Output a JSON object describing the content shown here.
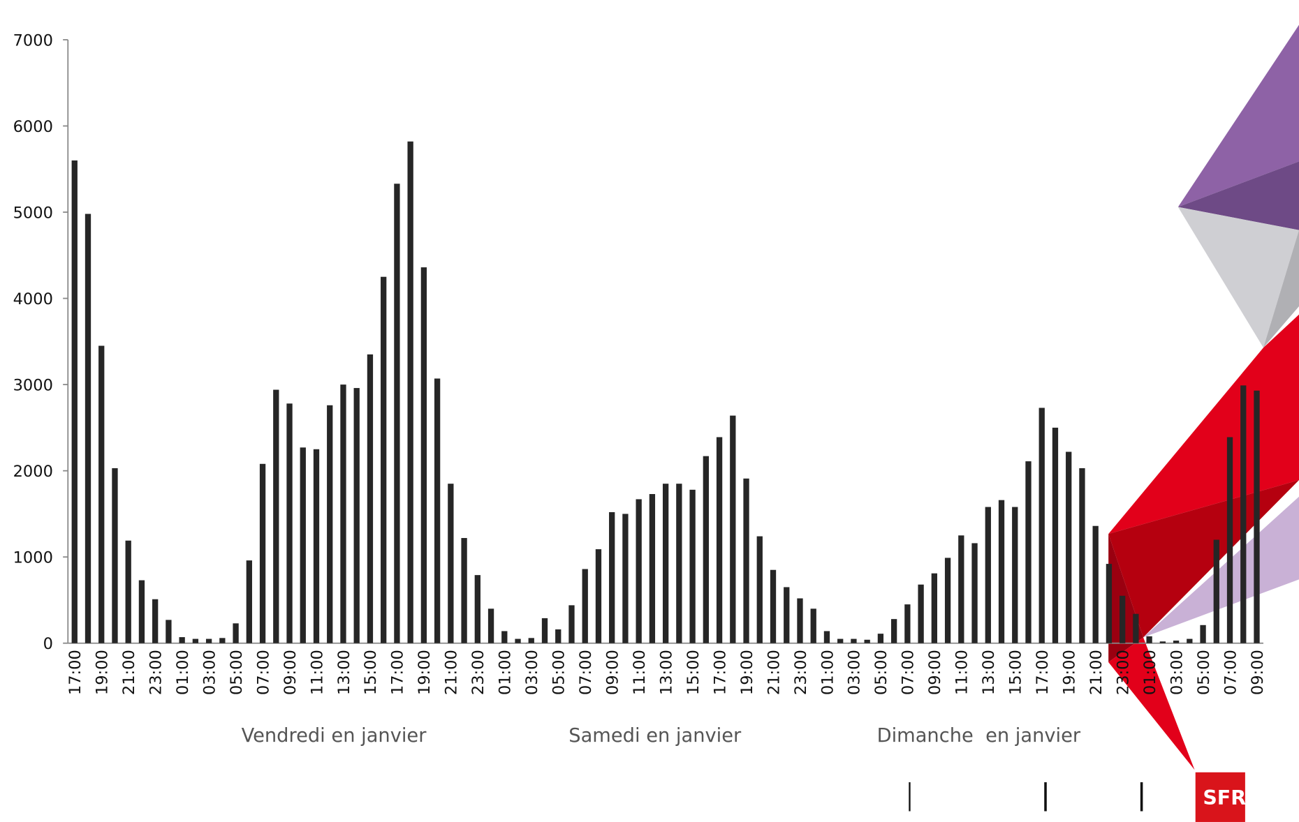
{
  "chart_data": {
    "type": "bar",
    "categories": [
      "17:00",
      null,
      "19:00",
      null,
      "21:00",
      null,
      "23:00",
      null,
      "01:00",
      null,
      "03:00",
      null,
      "05:00",
      null,
      "07:00",
      null,
      "09:00",
      null,
      "11:00",
      null,
      "13:00",
      null,
      "15:00",
      null,
      "17:00",
      null,
      "19:00",
      null,
      "21:00",
      null,
      "23:00",
      null,
      "01:00",
      null,
      "03:00",
      null,
      "05:00",
      null,
      "07:00",
      null,
      "09:00",
      null,
      "11:00",
      null,
      "13:00",
      null,
      "15:00",
      null,
      "17:00",
      null,
      "19:00",
      null,
      "21:00",
      null,
      "23:00",
      null,
      "01:00",
      null,
      "03:00",
      null,
      "05:00",
      null,
      "07:00",
      null,
      "09:00",
      null,
      "11:00",
      null,
      "13:00",
      null,
      "15:00",
      null,
      "17:00",
      null,
      "19:00",
      null,
      "21:00",
      null,
      "23:00",
      null,
      "01:00",
      null,
      "03:00",
      null,
      "05:00",
      null,
      "07:00",
      null,
      "09:00"
    ],
    "values": [
      5600,
      4980,
      3450,
      2030,
      1190,
      730,
      510,
      270,
      70,
      50,
      50,
      60,
      230,
      960,
      2080,
      2940,
      2780,
      2270,
      2250,
      2760,
      3000,
      2960,
      3350,
      4250,
      5330,
      5820,
      4360,
      3070,
      1850,
      1220,
      790,
      400,
      140,
      50,
      60,
      290,
      160,
      440,
      860,
      1090,
      1520,
      1500,
      1670,
      1730,
      1850,
      1850,
      1780,
      2170,
      2390,
      2640,
      1910,
      1240,
      850,
      650,
      520,
      400,
      140,
      50,
      50,
      40,
      110,
      280,
      450,
      680,
      810,
      990,
      1250,
      1160,
      1580,
      1660,
      1580,
      2110,
      2730,
      2500,
      2220,
      2030,
      1360,
      920,
      550,
      340,
      80,
      20,
      30,
      50,
      210,
      1200,
      2390,
      2990,
      2930
    ],
    "color": "#262626",
    "ylim": [
      0,
      7000
    ],
    "yticks": [
      0,
      1000,
      2000,
      3000,
      4000,
      5000,
      6000,
      7000
    ],
    "grid": false,
    "group_labels": [
      "Vendredi en janvier",
      "Samedi en janvier",
      "Dimanche  en janvier"
    ]
  },
  "logo": "SFR"
}
